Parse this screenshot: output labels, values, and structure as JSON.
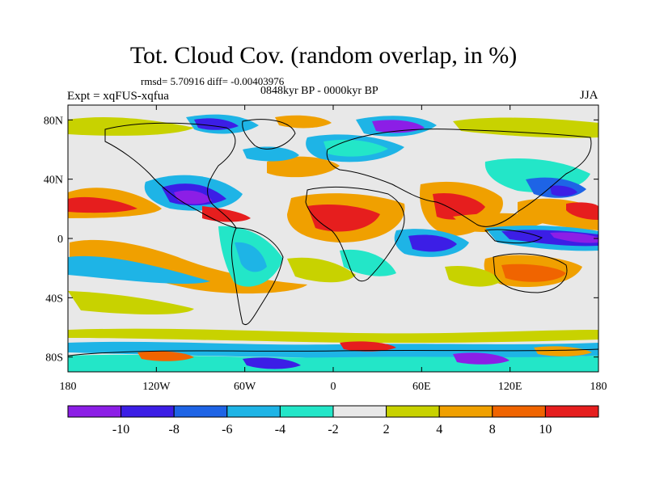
{
  "header": {
    "title": "Tot. Cloud Cov. (random overlap, in %)",
    "stats": "rmsd= 5.70916 diff= -0.00403976",
    "period": "0848kyr BP - 0000kyr BP",
    "experiment": "Expt = xqFUS-xqfua",
    "season": "JJA"
  },
  "axes": {
    "lon_ticks": [
      "180",
      "120W",
      "60W",
      "0",
      "60E",
      "120E",
      "180"
    ],
    "lat_ticks": [
      "80N",
      "40N",
      "0",
      "40S",
      "80S"
    ]
  },
  "colorbar": {
    "labels": [
      "-10",
      "-8",
      "-6",
      "-4",
      "-2",
      "2",
      "4",
      "8",
      "10"
    ],
    "colors": [
      "#8c1ee6",
      "#3c1ee6",
      "#1e64e6",
      "#1eb4e6",
      "#23e6c8",
      "#e8e8e8",
      "#c8d200",
      "#f0a000",
      "#f06400",
      "#e61e1e"
    ]
  },
  "colors": {
    "background": "#e8e8e8",
    "coastline": "#000000"
  }
}
